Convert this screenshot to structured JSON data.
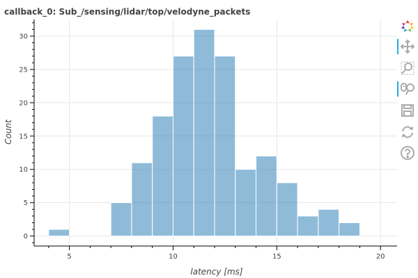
{
  "chart_data": {
    "type": "bar",
    "title": "callback_0: Sub_/sensing/lidar/top/velodyne_packets",
    "xlabel": "latency [ms]",
    "ylabel": "Count",
    "xlim": [
      3.3,
      20.8
    ],
    "ylim": [
      -1.5,
      32.5
    ],
    "xticks": [
      5,
      10,
      15,
      20
    ],
    "yticks": [
      0,
      5,
      10,
      15,
      20,
      25,
      30
    ],
    "grid": true,
    "bar_color": "#1f77b4",
    "bins": [
      {
        "x0": 4,
        "x1": 5,
        "count": 1
      },
      {
        "x0": 5,
        "x1": 6,
        "count": 0
      },
      {
        "x0": 6,
        "x1": 7,
        "count": 0
      },
      {
        "x0": 7,
        "x1": 8,
        "count": 5
      },
      {
        "x0": 8,
        "x1": 9,
        "count": 11
      },
      {
        "x0": 9,
        "x1": 10,
        "count": 18
      },
      {
        "x0": 10,
        "x1": 11,
        "count": 27
      },
      {
        "x0": 11,
        "x1": 12,
        "count": 31
      },
      {
        "x0": 12,
        "x1": 13,
        "count": 27
      },
      {
        "x0": 13,
        "x1": 14,
        "count": 10
      },
      {
        "x0": 14,
        "x1": 15,
        "count": 12
      },
      {
        "x0": 15,
        "x1": 16,
        "count": 8
      },
      {
        "x0": 16,
        "x1": 17,
        "count": 3
      },
      {
        "x0": 17,
        "x1": 18,
        "count": 4
      },
      {
        "x0": 18,
        "x1": 19,
        "count": 2
      }
    ]
  },
  "toolbar": {
    "logo": "bokeh-logo-icon",
    "tools": [
      {
        "name": "pan-tool",
        "icon": "pan-icon",
        "active": true
      },
      {
        "name": "box-zoom-tool",
        "icon": "box-zoom-icon",
        "active": false
      },
      {
        "name": "wheel-zoom-tool",
        "icon": "wheel-zoom-icon",
        "active": true
      },
      {
        "name": "save-tool",
        "icon": "save-icon",
        "active": false
      },
      {
        "name": "reset-tool",
        "icon": "reset-icon",
        "active": false
      },
      {
        "name": "help-tool",
        "icon": "help-icon",
        "active": false
      }
    ]
  }
}
